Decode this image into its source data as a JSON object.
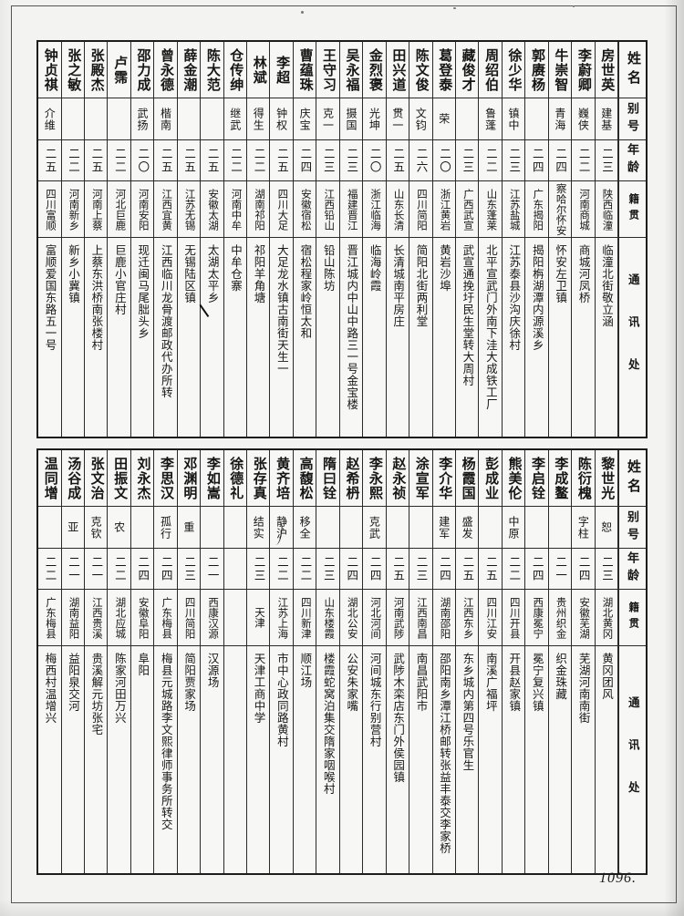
{
  "page": {
    "number": "1096."
  },
  "headers": {
    "name": "姓名",
    "alias": "别号",
    "age": "年龄",
    "origin": "籍贯",
    "address": "通讯处"
  },
  "tables": {
    "top": {
      "entries": [
        {
          "name": "房世英",
          "alias": "建基",
          "age": "二三",
          "origin": "陕西临潼",
          "address": "临潼北街敬立涵"
        },
        {
          "name": "李蔚卿",
          "alias": "巍侠",
          "age": "二二",
          "origin": "河南商城",
          "address": "商城河凤桥"
        },
        {
          "name": "牛崇智",
          "alias": "青海",
          "age": "二四",
          "origin": "察哈尔怀安",
          "address": "怀安左卫镇"
        },
        {
          "name": "郭赓杨",
          "alias": "",
          "age": "二四",
          "origin": "广东揭阳",
          "address": "揭阳栴湖潭内源溪乡"
        },
        {
          "name": "徐少华",
          "alias": "镇中",
          "age": "二三",
          "origin": "江苏盐城",
          "address": "江苏泰县沙沟庆徐村"
        },
        {
          "name": "周绍伯",
          "alias": "鲁蓬",
          "age": "二二",
          "origin": "山东蓬莱",
          "address": "北平宣武门外南下洼大成铁工厂"
        },
        {
          "name": "藏俊才",
          "alias": "",
          "age": "二三",
          "origin": "广西武宣",
          "address": "武宣通挽圩民生堂转大周村"
        },
        {
          "name": "葛登泰",
          "alias": "荣",
          "age": "二〇",
          "origin": "浙江黄岩",
          "address": "黄岩沙埠"
        },
        {
          "name": "陈文俊",
          "alias": "文钧",
          "age": "二六",
          "origin": "四川简阳",
          "address": "简阳北街两利堂"
        },
        {
          "name": "田兴道",
          "alias": "贯一",
          "age": "二五",
          "origin": "山东长清",
          "address": "长清城南平房庄"
        },
        {
          "name": "金烈褒",
          "alias": "光坤",
          "age": "二〇",
          "origin": "浙江临海",
          "address": "临海岭霞"
        },
        {
          "name": "吴永福",
          "alias": "摄国",
          "age": "二三",
          "origin": "福建晋江",
          "address": "晋江城内中山中路三一号金宝楼"
        },
        {
          "name": "王守习",
          "alias": "克一",
          "age": "二三",
          "origin": "江西铅山",
          "address": "铅山陈坊"
        },
        {
          "name": "曹蕴珠",
          "alias": "庆宝",
          "age": "二四",
          "origin": "安徽宿松",
          "address": "宿松程家岭恒太和"
        },
        {
          "name": "李超",
          "alias": "钟权",
          "age": "二五",
          "origin": "四川大足",
          "address": "大足龙水镇古南街天生一"
        },
        {
          "name": "林斌",
          "alias": "得生",
          "age": "二二",
          "origin": "湖南祁阳",
          "address": "祁阳羊角塘"
        },
        {
          "name": "仓传绅",
          "alias": "继武",
          "age": "二二",
          "origin": "河南中牟",
          "address": "中牟仓寨"
        },
        {
          "name": "陈大范",
          "alias": "",
          "age": "二五",
          "origin": "安徽太湖",
          "address": "太湖太平乡"
        },
        {
          "name": "薛金潮",
          "alias": "",
          "age": "二五",
          "origin": "江苏无锡",
          "address": "无锡陆区镇"
        },
        {
          "name": "曾永德",
          "alias": "楷南",
          "age": "二五",
          "origin": "江西宜黄",
          "address": "江西临川龙骨渡邮政代办所转"
        },
        {
          "name": "邵力成",
          "alias": "武扬",
          "age": "二〇",
          "origin": "河南安阳",
          "address": "现迁闽马尾朏头乡"
        },
        {
          "name": "卢霈",
          "alias": "",
          "age": "二二",
          "origin": "河北巨鹿",
          "address": "巨鹿小官庄村"
        },
        {
          "name": "张殿杰",
          "alias": "",
          "age": "二五",
          "origin": "河南上蔡",
          "address": "上蔡东洪桥南张楼村"
        },
        {
          "name": "张之敏",
          "alias": "",
          "age": "二二",
          "origin": "河南新乡",
          "address": "新乡小冀镇"
        },
        {
          "name": "钟贞祺",
          "alias": "介维",
          "age": "二五",
          "origin": "四川富顺",
          "address": "富顺爱国东路五一号"
        }
      ]
    },
    "bottom": {
      "entries": [
        {
          "name": "黎世光",
          "alias": "恕",
          "age": "二三",
          "origin": "湖北黄冈",
          "address": "黄冈团风"
        },
        {
          "name": "陈衍槐",
          "alias": "字柱",
          "age": "二四",
          "origin": "安徽芜湖",
          "address": "芜湖河南南街"
        },
        {
          "name": "李成鳌",
          "alias": "",
          "age": "二一",
          "origin": "贵州织金",
          "address": "织金珠藏"
        },
        {
          "name": "李启铨",
          "alias": "",
          "age": "二四",
          "origin": "西康冕宁",
          "address": "冕宁复兴镇"
        },
        {
          "name": "熊美伦",
          "alias": "中原",
          "age": "二二",
          "origin": "四川开县",
          "address": "开县赵家镇"
        },
        {
          "name": "彭成业",
          "alias": "",
          "age": "二五",
          "origin": "四川江安",
          "address": "南溪广福坪"
        },
        {
          "name": "杨霞国",
          "alias": "盛发",
          "age": "二五",
          "origin": "江西东乡",
          "address": "东乡城内第四号乐官生"
        },
        {
          "name": "李介华",
          "alias": "建军",
          "age": "二四",
          "origin": "湖南邵阳",
          "address": "邵阳南乡潭江桥邮转张益丰泰交李家桥"
        },
        {
          "name": "涂宣军",
          "alias": "",
          "age": "二三",
          "origin": "江西南昌",
          "address": "南昌武阳市"
        },
        {
          "name": "赵永祯",
          "alias": "",
          "age": "二五",
          "origin": "河南武陟",
          "address": "武陟木栾店东门外侯园镇"
        },
        {
          "name": "李永熙",
          "alias": "克武",
          "age": "二四",
          "origin": "河北河间",
          "address": "河间城东行别营村"
        },
        {
          "name": "赵希枬",
          "alias": "",
          "age": "二四",
          "origin": "湖北公安",
          "address": "公安朱家嘴"
        },
        {
          "name": "隋曰铨",
          "alias": "",
          "age": "二三",
          "origin": "山东楼霞",
          "address": "楼霞蛇窝泊集交隋家咽喉村"
        },
        {
          "name": "高馥松",
          "alias": "移全",
          "age": "二二",
          "origin": "四川新津",
          "address": "顺江场"
        },
        {
          "name": "黄齐培",
          "alias": "静沪",
          "age": "二二",
          "origin": "江苏上海",
          "address": "市中心政同路黄村"
        },
        {
          "name": "张存真",
          "alias": "结实",
          "age": "二三",
          "origin": "天津",
          "address": "天津工商中学"
        },
        {
          "name": "徐德礼",
          "alias": "",
          "age": "",
          "origin": "",
          "address": ""
        },
        {
          "name": "李如嵩",
          "alias": "",
          "age": "二一",
          "origin": "西康汉源",
          "address": "汉源场"
        },
        {
          "name": "邓渊明",
          "alias": "重",
          "age": "二三",
          "origin": "四川简阳",
          "address": "简阳贾家场"
        },
        {
          "name": "李思汉",
          "alias": "孤行",
          "age": "二四",
          "origin": "广东梅县",
          "address": "梅县元城路李文熙律师事务所转交"
        },
        {
          "name": "刘永杰",
          "alias": "",
          "age": "二四",
          "origin": "安徽阜阳",
          "address": "阜阳"
        },
        {
          "name": "田振文",
          "alias": "农",
          "age": "二二",
          "origin": "湖北应城",
          "address": "陈家河田万兴"
        },
        {
          "name": "张文治",
          "alias": "克钦",
          "age": "二一",
          "origin": "江西贵溪",
          "address": "贵溪解元坊张宅"
        },
        {
          "name": "汤谷成",
          "alias": "亚",
          "age": "二一",
          "origin": "湖南益阳",
          "address": "益阳泉交河"
        },
        {
          "name": "温同增",
          "alias": "",
          "age": "二二",
          "origin": "广东梅县",
          "address": "梅西村温增兴"
        }
      ]
    }
  }
}
